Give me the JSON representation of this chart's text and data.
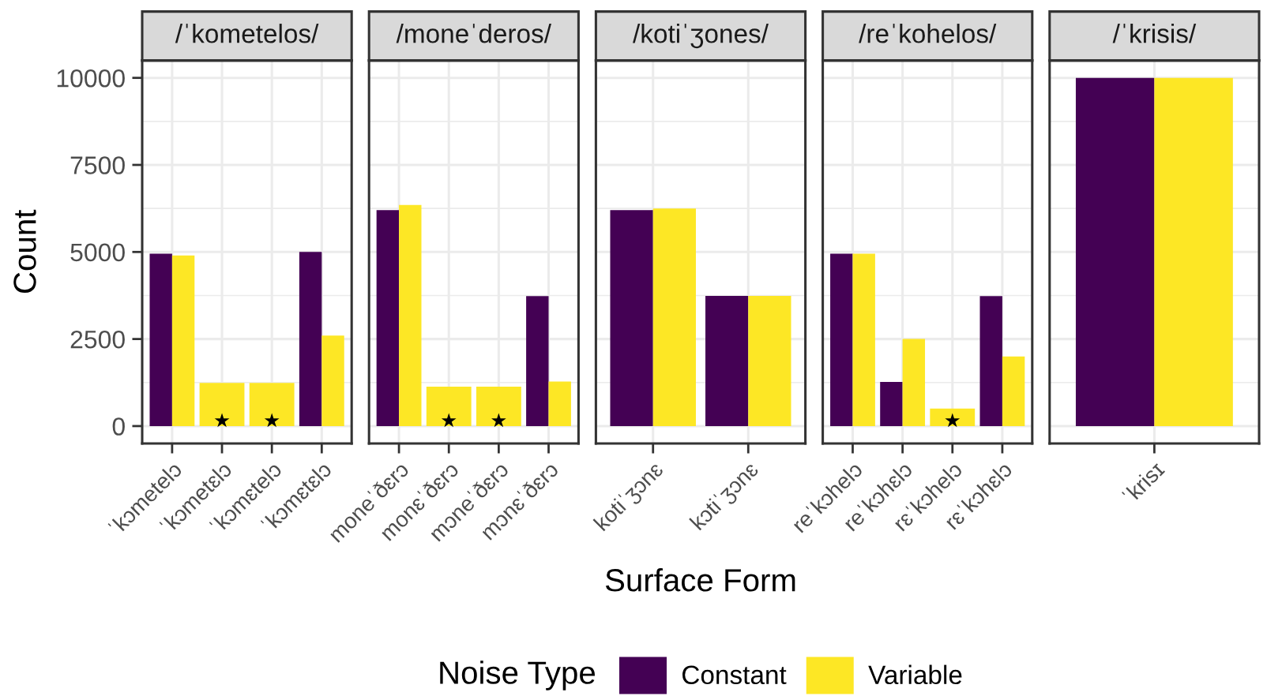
{
  "chart_data": [
    {
      "type": "bar",
      "title": "/ˈkometelos/",
      "ylabel": "Count",
      "legend": "bottom",
      "legend_title": "Noise Type",
      "categories": [
        "ˈkɔmetelɔ",
        "ˈkɔmetɛlɔ",
        "ˈkɔmɛtelɔ",
        "ˈkɔmɛtɛlɔ"
      ],
      "series": [
        {
          "name": "Constant",
          "color": "#440154",
          "values": [
            4950,
            null,
            null,
            5000
          ]
        },
        {
          "name": "Variable",
          "color": "#fde725",
          "values": [
            4900,
            1240,
            1240,
            2600
          ]
        },
        {
          "type": "scatter",
          "marker": "star",
          "color": "#000000",
          "values": [
            null,
            150,
            150,
            null
          ]
        }
      ],
      "ylim": [
        -500,
        10500
      ],
      "yticks": [
        0,
        2500,
        5000,
        7500,
        10000
      ],
      "grid": true
    },
    {
      "type": "bar",
      "title": "/moneˈderos/",
      "categories": [
        "moneˈðɛrɔ",
        "monɛˈðɛrɔ",
        "mɔneˈðɛrɔ",
        "mɔnɛˈðɛrɔ"
      ],
      "series": [
        {
          "color": "#440154",
          "values": [
            6200,
            null,
            null,
            3730
          ]
        },
        {
          "color": "#fde725",
          "values": [
            6350,
            1130,
            1130,
            1280
          ]
        },
        {
          "type": "scatter",
          "marker": "star",
          "color": "#000000",
          "values": [
            null,
            150,
            150,
            null
          ]
        }
      ],
      "ylim": [
        -500,
        10500
      ],
      "yticks": [
        0,
        2500,
        5000,
        7500,
        10000
      ],
      "grid": true,
      "tick_labels": "x"
    },
    {
      "type": "bar",
      "title": "/kotiˈʒones/",
      "xlabel": "Surface Form",
      "categories": [
        "kotiˈʒɔnɛ",
        "kɔtiˈʒɔnɛ"
      ],
      "series": [
        {
          "color": "#440154",
          "values": [
            6200,
            3740
          ]
        },
        {
          "color": "#fde725",
          "values": [
            6250,
            3740
          ]
        }
      ],
      "ylim": [
        -500,
        10500
      ],
      "yticks": [
        0,
        2500,
        5000,
        7500,
        10000
      ],
      "grid": true,
      "tick_labels": "x"
    },
    {
      "type": "bar",
      "title": "/reˈkohelos/",
      "categories": [
        "reˈkɔhelɔ",
        "reˈkɔhɛlɔ",
        "rɛˈkɔhelɔ",
        "rɛˈkɔhɛlɔ"
      ],
      "series": [
        {
          "color": "#440154",
          "values": [
            4950,
            1270,
            null,
            3730
          ]
        },
        {
          "color": "#fde725",
          "values": [
            4950,
            2500,
            500,
            2000
          ]
        },
        {
          "type": "scatter",
          "marker": "star",
          "color": "#000000",
          "values": [
            null,
            null,
            150,
            null
          ]
        }
      ],
      "ylim": [
        -500,
        10500
      ],
      "yticks": [
        0,
        2500,
        5000,
        7500,
        10000
      ],
      "grid": true,
      "tick_labels": "x"
    },
    {
      "type": "bar",
      "title": "/ˈkrisis/",
      "categories": [
        "ˈkrisɪ"
      ],
      "series": [
        {
          "color": "#440154",
          "values": [
            10000
          ]
        },
        {
          "color": "#fde725",
          "values": [
            10000
          ]
        }
      ],
      "ylim": [
        -500,
        10500
      ],
      "yticks": [
        0,
        2500,
        5000,
        7500,
        10000
      ],
      "grid": true,
      "tick_labels": "x"
    }
  ]
}
